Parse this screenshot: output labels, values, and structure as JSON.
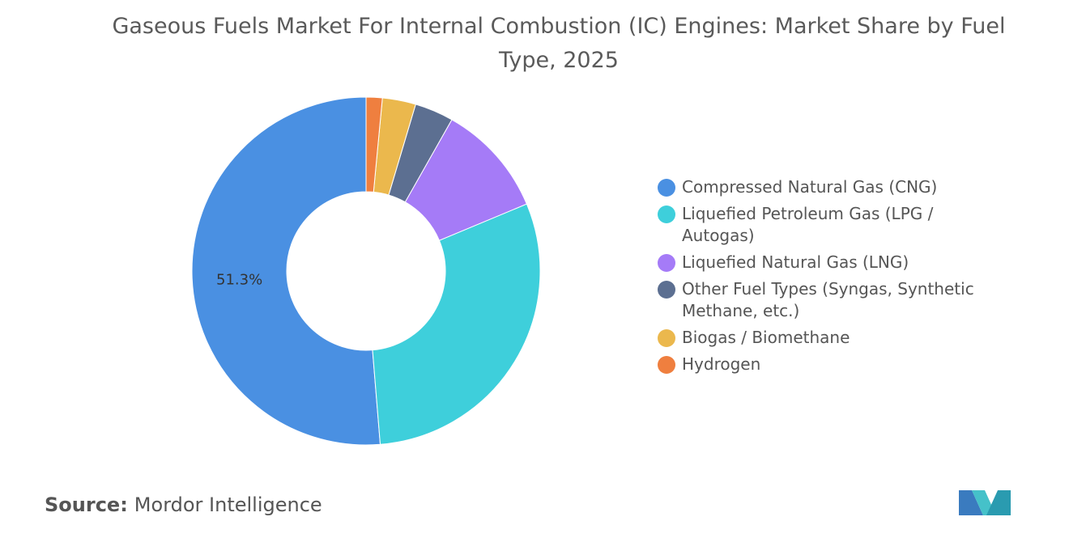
{
  "chart_data": {
    "type": "pie",
    "title": "Gaseous Fuels Market For Internal Combustion (IC) Engines: Market Share by Fuel Type, 2025",
    "categories": [
      "Compressed Natural Gas (CNG)",
      "Liquefied Petroleum Gas (LPG / Autogas)",
      "Liquefied Natural Gas (LNG)",
      "Other Fuel Types (Syngas, Synthetic Methane, etc.)",
      "Biogas / Biomethane",
      "Hydrogen"
    ],
    "values": [
      51.3,
      30,
      10.5,
      3.6,
      3.1,
      1.5
    ],
    "value_labels": [
      "51.3%",
      null,
      null,
      null,
      null,
      null
    ],
    "colors": [
      "#4a90e2",
      "#3ecfdb",
      "#a57bf7",
      "#5c6f91",
      "#ebb84d",
      "#ef7f3f"
    ],
    "donut": true,
    "legend": "right"
  },
  "source": {
    "label": "Source:",
    "text": "Mordor Intelligence"
  }
}
